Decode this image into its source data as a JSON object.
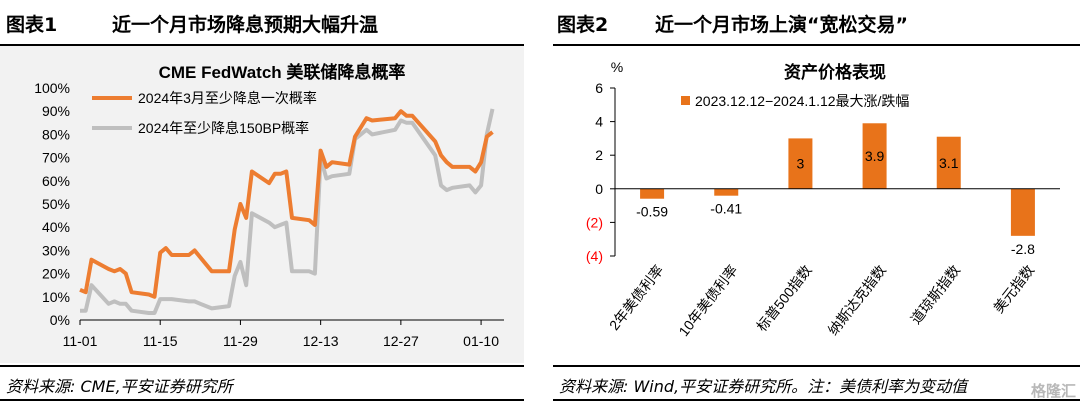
{
  "panel1": {
    "figure_no": "图表1",
    "figure_title": "近一个月市场降息预期大幅升温",
    "source": "资料来源: CME,平安证券研究所"
  },
  "panel2": {
    "figure_no": "图表2",
    "figure_title": "近一个月市场上演“宽松交易”",
    "source": "资料来源: Wind,平安证券研究所。注：美债利率为变动值"
  },
  "watermark": "格隆汇",
  "chart_data": [
    {
      "type": "line",
      "title": "CME FedWatch 美联储降息概率",
      "y_tick_labels": [
        "0%",
        "10%",
        "20%",
        "30%",
        "40%",
        "50%",
        "60%",
        "70%",
        "80%",
        "90%",
        "100%"
      ],
      "ylim": [
        0,
        100
      ],
      "x_tick_labels": [
        "11-01",
        "11-15",
        "11-29",
        "12-13",
        "12-27",
        "01-10"
      ],
      "x_start": "2023-11-01",
      "legend_position": "top-left",
      "series": [
        {
          "name": "2024年3月至少降息一次概率",
          "color": "#ed7d31",
          "points": [
            [
              "2023-11-01",
              13
            ],
            [
              "2023-11-02",
              12
            ],
            [
              "2023-11-03",
              26
            ],
            [
              "2023-11-06",
              22
            ],
            [
              "2023-11-07",
              21
            ],
            [
              "2023-11-08",
              22
            ],
            [
              "2023-11-09",
              20
            ],
            [
              "2023-11-10",
              12
            ],
            [
              "2023-11-13",
              11
            ],
            [
              "2023-11-14",
              10
            ],
            [
              "2023-11-15",
              29
            ],
            [
              "2023-11-16",
              31
            ],
            [
              "2023-11-17",
              28
            ],
            [
              "2023-11-20",
              28
            ],
            [
              "2023-11-21",
              30
            ],
            [
              "2023-11-22",
              27
            ],
            [
              "2023-11-24",
              21
            ],
            [
              "2023-11-27",
              21
            ],
            [
              "2023-11-28",
              39
            ],
            [
              "2023-11-29",
              50
            ],
            [
              "2023-11-30",
              44
            ],
            [
              "2023-12-01",
              64
            ],
            [
              "2023-12-04",
              59
            ],
            [
              "2023-12-05",
              63
            ],
            [
              "2023-12-06",
              63
            ],
            [
              "2023-12-07",
              64
            ],
            [
              "2023-12-08",
              44
            ],
            [
              "2023-12-11",
              43
            ],
            [
              "2023-12-12",
              41
            ],
            [
              "2023-12-13",
              73
            ],
            [
              "2023-12-14",
              66
            ],
            [
              "2023-12-15",
              68
            ],
            [
              "2023-12-18",
              67
            ],
            [
              "2023-12-19",
              79
            ],
            [
              "2023-12-20",
              83
            ],
            [
              "2023-12-21",
              87
            ],
            [
              "2023-12-22",
              86
            ],
            [
              "2023-12-26",
              87
            ],
            [
              "2023-12-27",
              90
            ],
            [
              "2023-12-28",
              88
            ],
            [
              "2023-12-29",
              88
            ],
            [
              "2024-01-02",
              77
            ],
            [
              "2024-01-03",
              71
            ],
            [
              "2024-01-04",
              68
            ],
            [
              "2024-01-05",
              66
            ],
            [
              "2024-01-08",
              66
            ],
            [
              "2024-01-09",
              64
            ],
            [
              "2024-01-10",
              68
            ],
            [
              "2024-01-11",
              79
            ],
            [
              "2024-01-12",
              81
            ]
          ]
        },
        {
          "name": "2024年至少降息150BP概率",
          "color": "#bfbfbf",
          "points": [
            [
              "2023-11-01",
              4
            ],
            [
              "2023-11-02",
              4
            ],
            [
              "2023-11-03",
              15
            ],
            [
              "2023-11-06",
              7
            ],
            [
              "2023-11-07",
              8
            ],
            [
              "2023-11-08",
              7
            ],
            [
              "2023-11-09",
              7
            ],
            [
              "2023-11-10",
              4
            ],
            [
              "2023-11-13",
              3
            ],
            [
              "2023-11-14",
              3
            ],
            [
              "2023-11-15",
              9
            ],
            [
              "2023-11-16",
              9
            ],
            [
              "2023-11-17",
              9
            ],
            [
              "2023-11-20",
              8
            ],
            [
              "2023-11-21",
              8
            ],
            [
              "2023-11-22",
              7
            ],
            [
              "2023-11-24",
              5
            ],
            [
              "2023-11-27",
              6
            ],
            [
              "2023-11-28",
              19
            ],
            [
              "2023-11-29",
              25
            ],
            [
              "2023-11-30",
              15
            ],
            [
              "2023-12-01",
              46
            ],
            [
              "2023-12-04",
              42
            ],
            [
              "2023-12-05",
              40
            ],
            [
              "2023-12-06",
              41
            ],
            [
              "2023-12-07",
              42
            ],
            [
              "2023-12-08",
              21
            ],
            [
              "2023-12-11",
              21
            ],
            [
              "2023-12-12",
              20
            ],
            [
              "2023-12-13",
              70
            ],
            [
              "2023-12-14",
              61
            ],
            [
              "2023-12-15",
              62
            ],
            [
              "2023-12-18",
              63
            ],
            [
              "2023-12-19",
              78
            ],
            [
              "2023-12-20",
              80
            ],
            [
              "2023-12-21",
              82
            ],
            [
              "2023-12-22",
              80
            ],
            [
              "2023-12-26",
              82
            ],
            [
              "2023-12-27",
              86
            ],
            [
              "2023-12-28",
              85
            ],
            [
              "2023-12-29",
              85
            ],
            [
              "2024-01-02",
              71
            ],
            [
              "2024-01-03",
              58
            ],
            [
              "2024-01-04",
              56
            ],
            [
              "2024-01-05",
              57
            ],
            [
              "2024-01-08",
              58
            ],
            [
              "2024-01-09",
              55
            ],
            [
              "2024-01-10",
              58
            ],
            [
              "2024-01-11",
              80
            ],
            [
              "2024-01-12",
              91
            ]
          ]
        }
      ]
    },
    {
      "type": "bar",
      "title": "资产价格表现",
      "ylabel": "%",
      "ylim": [
        -4,
        6
      ],
      "y_tick_labels": [
        "(4)",
        "(2)",
        "0",
        "2",
        "4",
        "6"
      ],
      "negative_tick_color": "#ff0000",
      "bar_color": "#e8731a",
      "legend_position": "top-center",
      "categories": [
        "2年美债利率",
        "10年美债利率",
        "标普500指数",
        "纳斯达克指数",
        "道琼斯指数",
        "美元指数"
      ],
      "series": [
        {
          "name": "2023.12.12−2024.1.12最大涨/跌幅",
          "values": [
            -0.59,
            -0.41,
            3,
            3.9,
            3.1,
            -2.8
          ],
          "value_labels": [
            "-0.59",
            "-0.41",
            "3",
            "3.9",
            "3.1",
            "-2.8"
          ]
        }
      ]
    }
  ]
}
